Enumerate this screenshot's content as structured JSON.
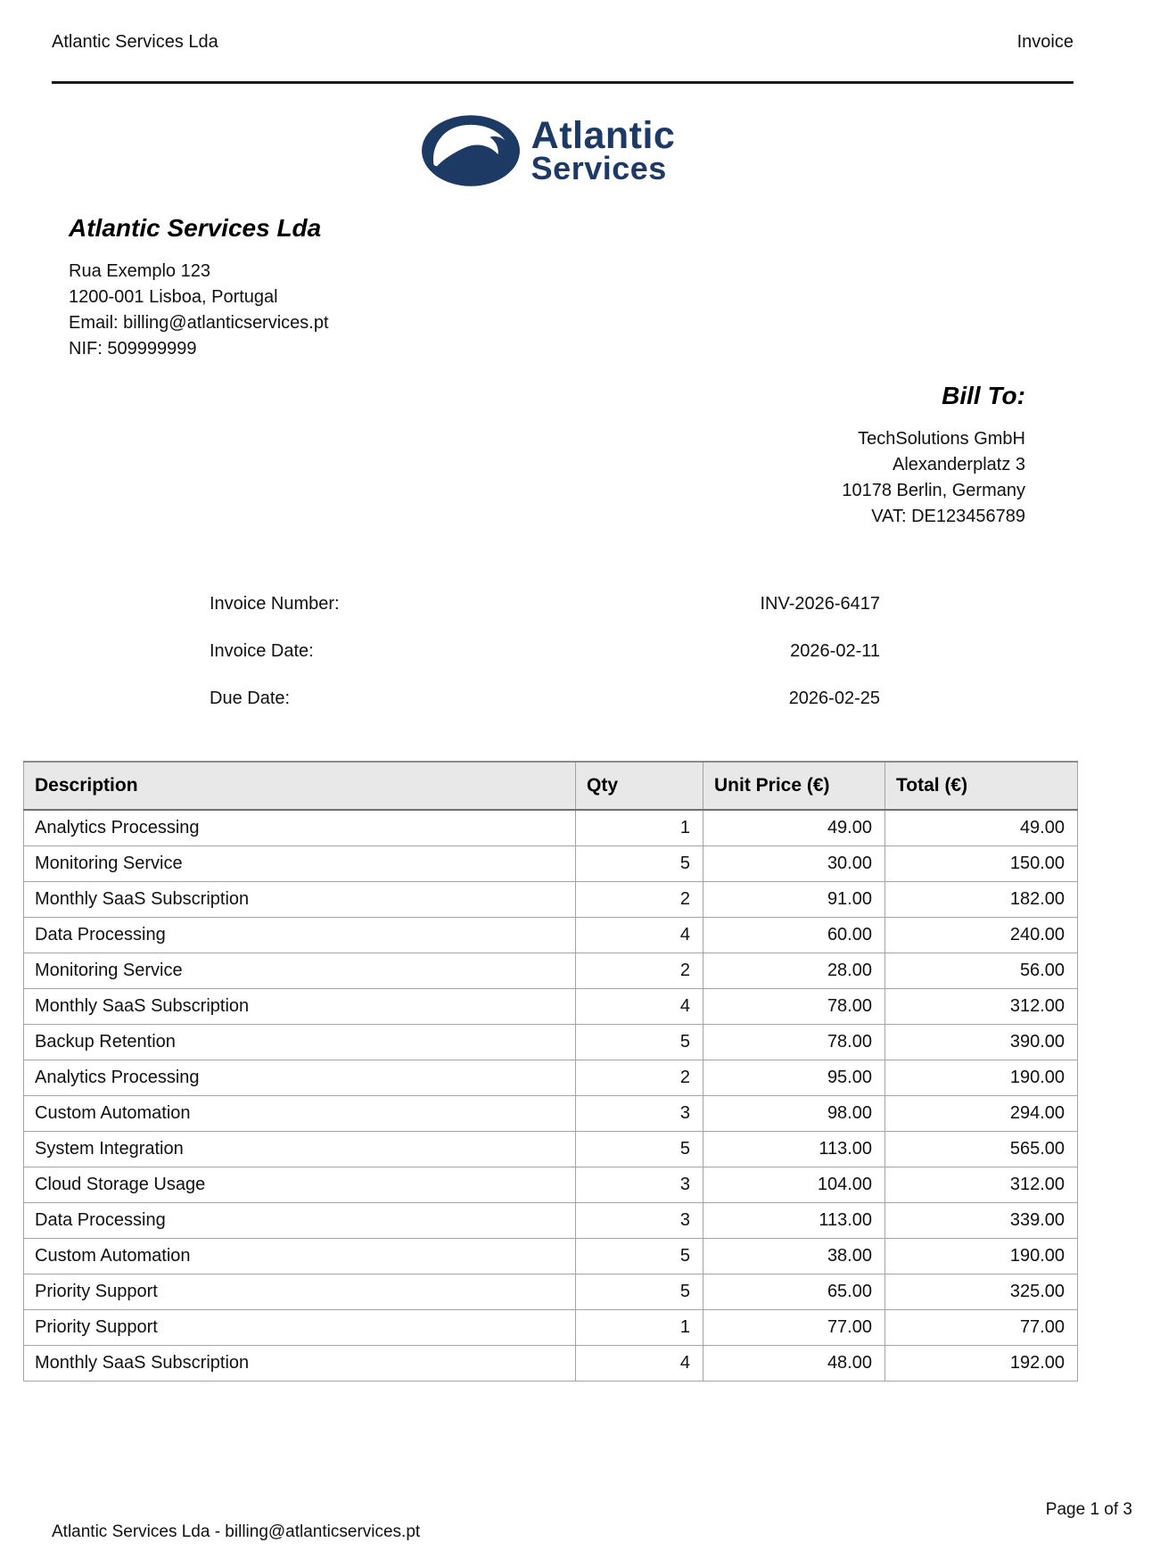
{
  "page_header": {
    "left_text": "Atlantic Services Lda",
    "right_text": "Invoice"
  },
  "logo": {
    "icon": "wave-icon",
    "line1": "Atlantic",
    "line2": "Services"
  },
  "company": {
    "name": "Atlantic Services Lda",
    "address_lines": [
      "Rua Exemplo 123",
      "1200-001 Lisboa, Portugal",
      "Email: billing@atlanticservices.pt",
      "NIF: 509999999"
    ]
  },
  "bill_to": {
    "heading": "Bill To:",
    "lines": [
      "TechSolutions GmbH",
      "Alexanderplatz 3",
      "10178 Berlin, Germany",
      "VAT: DE123456789"
    ]
  },
  "invoice_meta": {
    "rows": [
      {
        "label": "Invoice Number:",
        "value": "INV-2026-6417"
      },
      {
        "label": "Invoice Date:",
        "value": "2026-02-11"
      },
      {
        "label": "Due Date:",
        "value": "2026-02-25"
      }
    ]
  },
  "items_table": {
    "columns": [
      "Description",
      "Qty",
      "Unit Price (€)",
      "Total (€)"
    ],
    "rows": [
      [
        "Analytics Processing",
        "1",
        "49.00",
        "49.00"
      ],
      [
        "Monitoring Service",
        "5",
        "30.00",
        "150.00"
      ],
      [
        "Monthly SaaS Subscription",
        "2",
        "91.00",
        "182.00"
      ],
      [
        "Data Processing",
        "4",
        "60.00",
        "240.00"
      ],
      [
        "Monitoring Service",
        "2",
        "28.00",
        "56.00"
      ],
      [
        "Monthly SaaS Subscription",
        "4",
        "78.00",
        "312.00"
      ],
      [
        "Backup Retention",
        "5",
        "78.00",
        "390.00"
      ],
      [
        "Analytics Processing",
        "2",
        "95.00",
        "190.00"
      ],
      [
        "Custom Automation",
        "3",
        "98.00",
        "294.00"
      ],
      [
        "System Integration",
        "5",
        "113.00",
        "565.00"
      ],
      [
        "Cloud Storage Usage",
        "3",
        "104.00",
        "312.00"
      ],
      [
        "Data Processing",
        "3",
        "113.00",
        "339.00"
      ],
      [
        "Custom Automation",
        "5",
        "38.00",
        "190.00"
      ],
      [
        "Priority Support",
        "5",
        "65.00",
        "325.00"
      ],
      [
        "Priority Support",
        "1",
        "77.00",
        "77.00"
      ],
      [
        "Monthly SaaS Subscription",
        "4",
        "48.00",
        "192.00"
      ]
    ]
  },
  "footer": {
    "page_number": "Page 1 of 3",
    "contact_line": "Atlantic Services Lda - billing@atlanticservices.pt"
  },
  "colors": {
    "brand_navy": "#1c3a64",
    "table_header_bg": "#e8e8e8",
    "table_border": "#a3a3a3"
  }
}
